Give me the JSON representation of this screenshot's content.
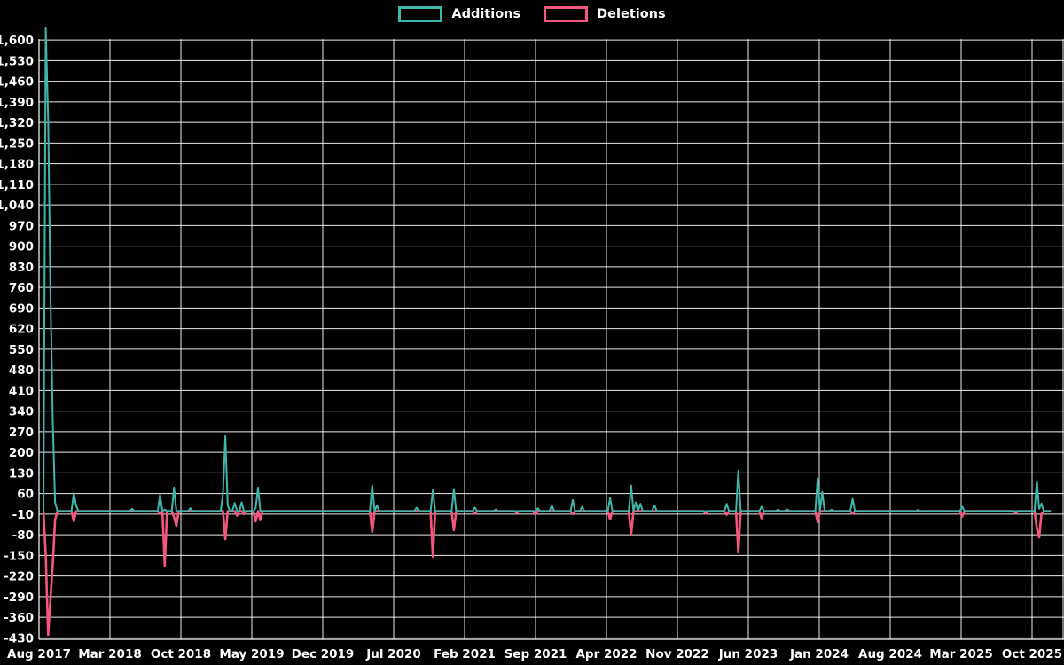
{
  "legend": {
    "items": [
      {
        "label": "Additions",
        "color": "#3fb6ab"
      },
      {
        "label": "Deletions",
        "color": "#f4567d"
      }
    ],
    "position": "top"
  },
  "chart_data": {
    "type": "line",
    "title": "",
    "xlabel": "",
    "ylabel": "",
    "background_color": "#000000",
    "grid": true,
    "grid_color": "#ffffff",
    "text_color": "#ffffff",
    "x_axis": {
      "unit": "weeks",
      "n_weeks": 433,
      "tick_labels": [
        "Aug 2017",
        "Mar 2018",
        "Oct 2018",
        "May 2019",
        "Dec 2019",
        "Jul 2020",
        "Feb 2021",
        "Sep 2021",
        "Apr 2022",
        "Nov 2022",
        "Jun 2023",
        "Jan 2024",
        "Aug 2024",
        "Mar 2025",
        "Oct 2025"
      ]
    },
    "y_axis": {
      "min": -430,
      "max": 1600,
      "step": 70,
      "tick_labels": [
        "1,600",
        "1,530",
        "1,460",
        "1,390",
        "1,320",
        "1,250",
        "1,180",
        "1,110",
        "1,040",
        "970",
        "900",
        "830",
        "760",
        "690",
        "620",
        "550",
        "480",
        "410",
        "340",
        "270",
        "200",
        "130",
        "60",
        "-10",
        "-80",
        "-150",
        "-220",
        "-290",
        "-360",
        "-430"
      ]
    },
    "series": [
      {
        "name": "Additions",
        "color": "#3fb6ab",
        "baseline": 0,
        "spikes": [
          [
            1,
            1640
          ],
          [
            2,
            1330
          ],
          [
            3,
            740
          ],
          [
            4,
            305
          ],
          [
            5,
            30
          ],
          [
            13,
            62
          ],
          [
            14,
            20
          ],
          [
            38,
            8
          ],
          [
            50,
            55
          ],
          [
            52,
            5
          ],
          [
            56,
            80
          ],
          [
            63,
            10
          ],
          [
            77,
            60
          ],
          [
            78,
            255
          ],
          [
            79,
            20
          ],
          [
            82,
            28
          ],
          [
            85,
            30
          ],
          [
            91,
            10
          ],
          [
            92,
            80
          ],
          [
            141,
            87
          ],
          [
            143,
            20
          ],
          [
            160,
            12
          ],
          [
            167,
            72
          ],
          [
            176,
            75
          ],
          [
            185,
            12
          ],
          [
            194,
            6
          ],
          [
            212,
            10
          ],
          [
            218,
            20
          ],
          [
            227,
            38
          ],
          [
            231,
            15
          ],
          [
            243,
            45
          ],
          [
            252,
            87
          ],
          [
            254,
            30
          ],
          [
            256,
            25
          ],
          [
            262,
            20
          ],
          [
            293,
            25
          ],
          [
            298,
            137
          ],
          [
            308,
            15
          ],
          [
            315,
            6
          ],
          [
            319,
            6
          ],
          [
            332,
            112
          ],
          [
            334,
            66
          ],
          [
            338,
            5
          ],
          [
            347,
            42
          ],
          [
            375,
            4
          ],
          [
            394,
            15
          ],
          [
            426,
            102
          ],
          [
            427,
            8
          ],
          [
            428,
            26
          ]
        ]
      },
      {
        "name": "Deletions",
        "color": "#f4567d",
        "baseline": 0,
        "spikes": [
          [
            1,
            -150
          ],
          [
            2,
            -420
          ],
          [
            3,
            -300
          ],
          [
            4,
            -180
          ],
          [
            5,
            -30
          ],
          [
            13,
            -34
          ],
          [
            50,
            -10
          ],
          [
            52,
            -185
          ],
          [
            56,
            -20
          ],
          [
            57,
            -50
          ],
          [
            78,
            -95
          ],
          [
            83,
            -15
          ],
          [
            86,
            -10
          ],
          [
            91,
            -35
          ],
          [
            93,
            -30
          ],
          [
            141,
            -70
          ],
          [
            167,
            -155
          ],
          [
            176,
            -64
          ],
          [
            185,
            -8
          ],
          [
            203,
            -6
          ],
          [
            211,
            -12
          ],
          [
            227,
            -10
          ],
          [
            243,
            -28
          ],
          [
            252,
            -80
          ],
          [
            284,
            -8
          ],
          [
            293,
            -12
          ],
          [
            298,
            -140
          ],
          [
            308,
            -24
          ],
          [
            332,
            -37
          ],
          [
            347,
            -8
          ],
          [
            394,
            -18
          ],
          [
            417,
            -6
          ],
          [
            426,
            -58
          ],
          [
            427,
            -89
          ],
          [
            428,
            -10
          ]
        ]
      }
    ],
    "legend_position": "top"
  }
}
